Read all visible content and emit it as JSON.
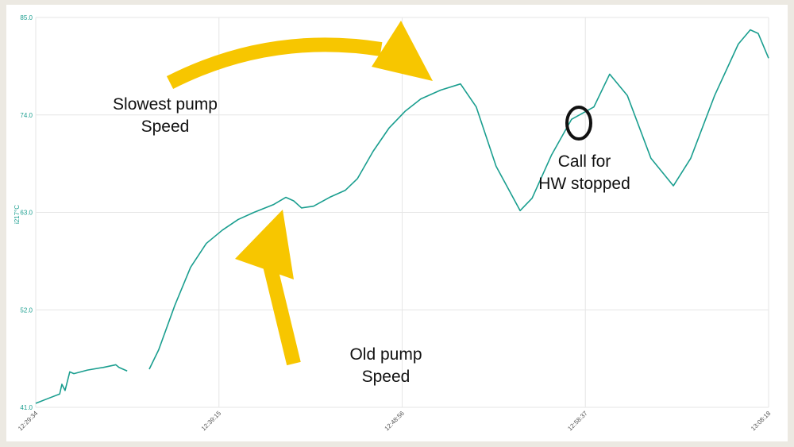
{
  "chart_data": {
    "type": "line",
    "y_label": "i217°C",
    "x": [
      "12:29:34",
      "12:30:12",
      "12:30:50",
      "12:30:57",
      "12:31:07",
      "12:31:22",
      "12:31:35",
      "12:32:18",
      "12:33:08",
      "12:33:48",
      "12:33:58",
      "12:34:24",
      "12:34:59",
      "12:35:34",
      "12:36:04",
      "12:36:55",
      "12:37:45",
      "12:38:35",
      "12:39:26",
      "12:40:16",
      "12:41:06",
      "12:42:09",
      "12:42:47",
      "12:43:12",
      "12:43:37",
      "12:44:15",
      "12:45:06",
      "12:45:56",
      "12:46:34",
      "12:47:24",
      "12:48:14",
      "12:49:05",
      "12:49:55",
      "12:50:58",
      "12:52:01",
      "12:52:51",
      "12:53:54",
      "12:55:10",
      "12:55:48",
      "12:56:50",
      "12:57:53",
      "12:59:04",
      "12:59:54",
      "13:00:50",
      "13:02:05",
      "13:03:16",
      "13:04:11",
      "13:05:27",
      "13:06:42",
      "13:07:20",
      "13:07:45",
      "13:08:18"
    ],
    "series": [
      {
        "color": "#1a9e8f",
        "values": [
          41.45,
          41.98,
          42.5,
          43.6,
          42.9,
          45.0,
          44.8,
          45.2,
          45.5,
          45.8,
          45.5,
          45.1,
          null,
          45.3,
          47.5,
          52.5,
          56.8,
          59.5,
          61.0,
          62.2,
          63.0,
          63.9,
          64.7,
          64.3,
          63.5,
          63.7,
          64.7,
          65.5,
          66.8,
          69.9,
          72.5,
          74.4,
          75.8,
          76.8,
          77.5,
          74.9,
          68.2,
          63.2,
          64.6,
          69.5,
          73.5,
          74.9,
          78.6,
          76.2,
          69.1,
          66.0,
          69.1,
          76.2,
          82.0,
          83.6,
          83.2,
          80.4
        ]
      }
    ],
    "xlim": [
      "12:29:34",
      "13:08:18"
    ],
    "xticks": [
      "12:29:34",
      "12:39:15",
      "12:48:56",
      "12:58:37",
      "13:08:18"
    ],
    "ylim": [
      41,
      85
    ],
    "yticks": [
      {
        "value": 41,
        "label": "41.0"
      },
      {
        "value": 52,
        "label": "52.0"
      },
      {
        "value": 63,
        "label": "63.0"
      },
      {
        "value": 74,
        "label": "74.0"
      },
      {
        "value": 85,
        "label": "85.0"
      }
    ],
    "grid": true,
    "annotations": [
      {
        "lines": [
          "Slowest pump",
          "Speed"
        ]
      },
      {
        "lines": [
          "Call for",
          "HW stopped"
        ]
      },
      {
        "lines": [
          "Old pump",
          "Speed"
        ]
      }
    ]
  }
}
